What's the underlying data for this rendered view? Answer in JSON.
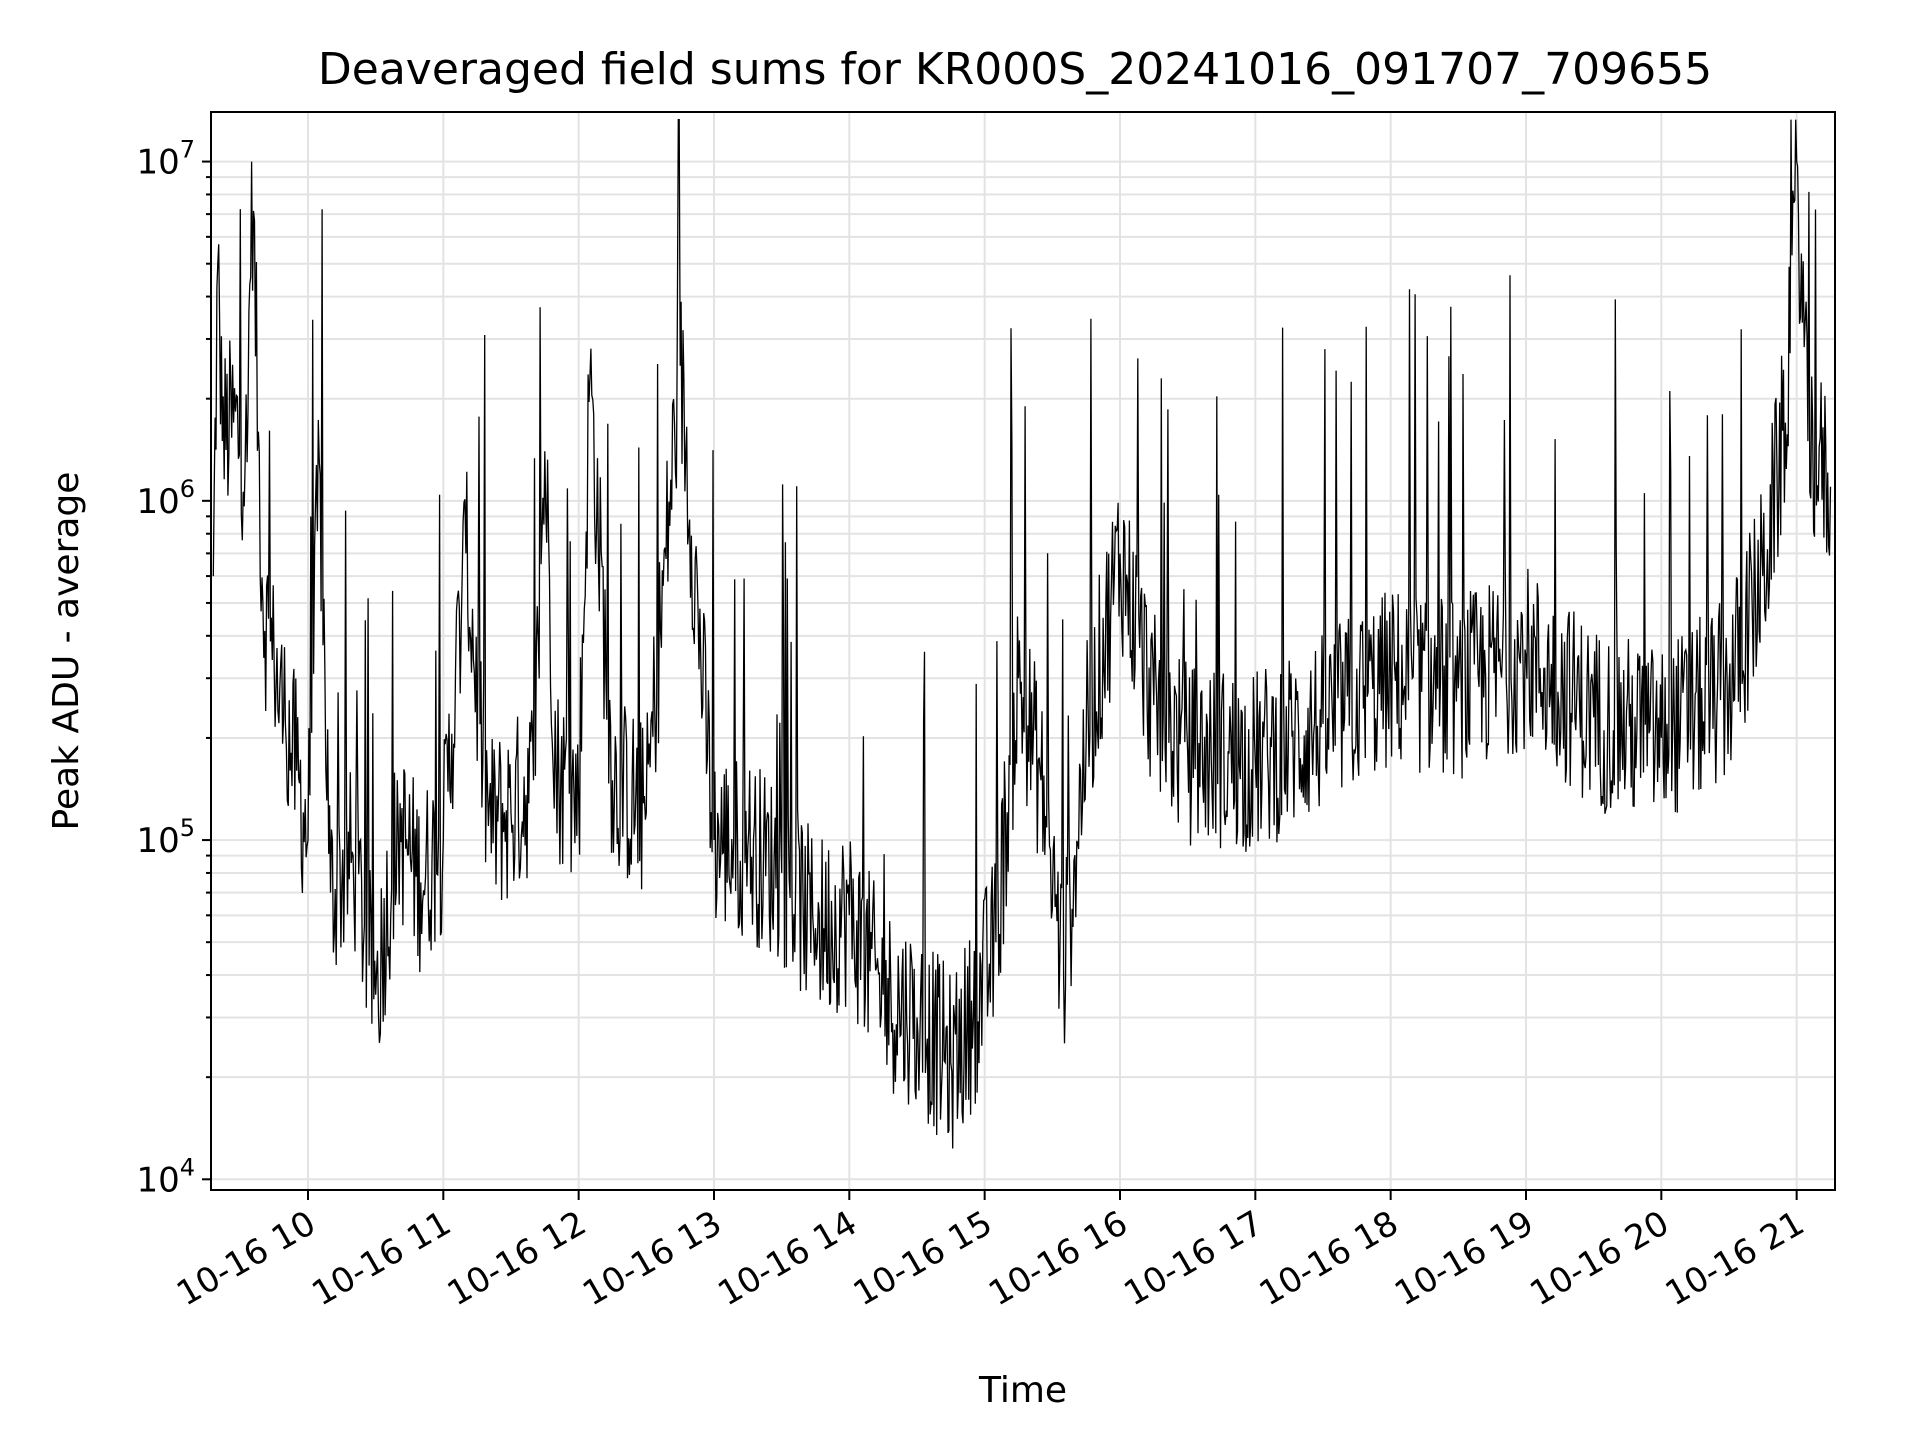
{
  "chart_data": {
    "type": "line",
    "title": "Deaveraged field sums for KR000S_20241016_091707_709655",
    "xlabel": "Time",
    "ylabel": "Peak ADU - average",
    "yscale": "log",
    "ylim": [
      9300,
      14000000
    ],
    "xlim": [
      "2024-10-16 09:17",
      "2024-10-16 21:17"
    ],
    "grid": true,
    "line_color": "#000000",
    "x_ticks": [
      "10-16 10",
      "10-16 11",
      "10-16 12",
      "10-16 13",
      "10-16 14",
      "10-16 15",
      "10-16 16",
      "10-16 17",
      "10-16 18",
      "10-16 19",
      "10-16 20",
      "10-16 21"
    ],
    "y_ticks": [
      {
        "value": 10000,
        "base": "10",
        "exp": "4"
      },
      {
        "value": 100000,
        "base": "10",
        "exp": "5"
      },
      {
        "value": 1000000,
        "base": "10",
        "exp": "6"
      },
      {
        "value": 10000000,
        "base": "10",
        "exp": "7"
      }
    ],
    "series": [
      {
        "points": [
          [
            "2024-10-16 09:18",
            600000
          ],
          [
            "2024-10-16 09:20",
            5000000
          ],
          [
            "2024-10-16 09:22",
            1500000
          ],
          [
            "2024-10-16 09:27",
            1700000
          ],
          [
            "2024-10-16 09:33",
            1300000
          ],
          [
            "2024-10-16 09:35",
            10000000
          ],
          [
            "2024-10-16 09:38",
            1600000
          ],
          [
            "2024-10-16 09:40",
            500000
          ],
          [
            "2024-10-16 09:45",
            320000
          ],
          [
            "2024-10-16 09:50",
            220000
          ],
          [
            "2024-10-16 09:55",
            160000
          ],
          [
            "2024-10-16 10:00",
            100000
          ],
          [
            "2024-10-16 10:05",
            1300000
          ],
          [
            "2024-10-16 10:10",
            70000
          ],
          [
            "2024-10-16 10:20",
            90000
          ],
          [
            "2024-10-16 10:30",
            35000
          ],
          [
            "2024-10-16 10:40",
            110000
          ],
          [
            "2024-10-16 10:50",
            75000
          ],
          [
            "2024-10-16 11:00",
            100000
          ],
          [
            "2024-10-16 11:10",
            700000
          ],
          [
            "2024-10-16 11:20",
            110000
          ],
          [
            "2024-10-16 11:30",
            120000
          ],
          [
            "2024-10-16 11:40",
            150000
          ],
          [
            "2024-10-16 11:45",
            1400000
          ],
          [
            "2024-10-16 11:50",
            160000
          ],
          [
            "2024-10-16 12:00",
            130000
          ],
          [
            "2024-10-16 12:05",
            2300000
          ],
          [
            "2024-10-16 12:15",
            150000
          ],
          [
            "2024-10-16 12:30",
            120000
          ],
          [
            "2024-10-16 12:45",
            2500000
          ],
          [
            "2024-10-16 13:00",
            100000
          ],
          [
            "2024-10-16 13:15",
            95000
          ],
          [
            "2024-10-16 13:30",
            80000
          ],
          [
            "2024-10-16 13:45",
            55000
          ],
          [
            "2024-10-16 14:00",
            60000
          ],
          [
            "2024-10-16 14:15",
            35000
          ],
          [
            "2024-10-16 14:30",
            30000
          ],
          [
            "2024-10-16 14:45",
            22000
          ],
          [
            "2024-10-16 14:55",
            30000
          ],
          [
            "2024-10-16 15:05",
            50000
          ],
          [
            "2024-10-16 15:15",
            300000
          ],
          [
            "2024-10-16 15:25",
            150000
          ],
          [
            "2024-10-16 15:35",
            40000
          ],
          [
            "2024-10-16 15:45",
            200000
          ],
          [
            "2024-10-16 16:00",
            700000
          ],
          [
            "2024-10-16 16:15",
            250000
          ],
          [
            "2024-10-16 16:30",
            180000
          ],
          [
            "2024-10-16 17:00",
            170000
          ],
          [
            "2024-10-16 17:30",
            220000
          ],
          [
            "2024-10-16 18:00",
            300000
          ],
          [
            "2024-10-16 18:30",
            280000
          ],
          [
            "2024-10-16 19:00",
            350000
          ],
          [
            "2024-10-16 19:30",
            230000
          ],
          [
            "2024-10-16 20:00",
            200000
          ],
          [
            "2024-10-16 20:30",
            280000
          ],
          [
            "2024-10-16 20:45",
            600000
          ],
          [
            "2024-10-16 20:55",
            1700000
          ],
          [
            "2024-10-16 21:00",
            10000000
          ],
          [
            "2024-10-16 21:05",
            1500000
          ],
          [
            "2024-10-16 21:15",
            1100000
          ]
        ]
      }
    ]
  }
}
